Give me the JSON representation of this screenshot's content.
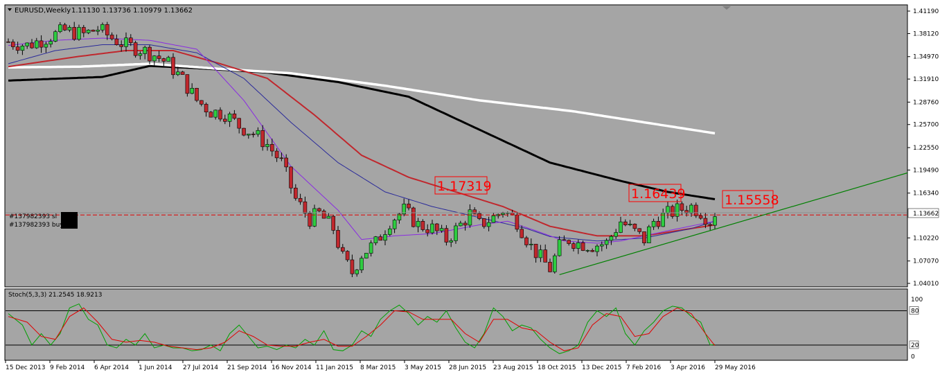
{
  "header": {
    "symbol": "EURUSD,Weekly",
    "ohlc": "1.11130 1.13736 1.10979 1.13662"
  },
  "colors": {
    "background": "#a5a5a5",
    "bull": "#2ecc40",
    "bear": "#c0272d",
    "ma_purple": "#8a2be2",
    "ma_blue": "#2a2a9a",
    "ma_red": "#c0272d",
    "ma_black": "#000000",
    "ma_white": "#ffffff",
    "trendline": "#008000",
    "annotation": "#ff0000",
    "stoch_main": "#00a000",
    "stoch_signal": "#e00000"
  },
  "price_axis": {
    "ticks": [
      "1.41190",
      "1.38120",
      "1.34970",
      "1.31910",
      "1.28760",
      "1.25700",
      "1.22550",
      "1.19490",
      "1.16340",
      "1.13662",
      "1.10220",
      "1.07070",
      "1.04010"
    ],
    "current_price": "1.13662"
  },
  "stoch_axis": {
    "ticks": [
      "100",
      "80",
      "20",
      "0"
    ]
  },
  "time_axis": {
    "labels": [
      "15 Dec 2013",
      "9 Feb 2014",
      "6 Apr 2014",
      "1 Jun 2014",
      "27 Jul 2014",
      "21 Sep 2014",
      "16 Nov 2014",
      "11 Jan 2015",
      "8 Mar 2015",
      "3 May 2015",
      "28 Jun 2015",
      "23 Aug 2015",
      "18 Oct 2015",
      "13 Dec 2015",
      "7 Feb 2016",
      "3 Apr 2016",
      "29 May 2016"
    ]
  },
  "orders": {
    "sl_label": "#137982393 sl",
    "buy_label": "#137982393 buy"
  },
  "annotations": [
    "1.17319",
    "1.16439",
    "1.15558"
  ],
  "stoch": {
    "label": "Stoch(5,3,3) 21.2545 18.9213",
    "upper_level": 80,
    "lower_level": 20
  },
  "chart_data": {
    "type": "candlestick",
    "title": "EURUSD,Weekly",
    "ylim": [
      1.0401,
      1.4119
    ],
    "x_labels": [
      "15 Dec 2013",
      "9 Feb 2014",
      "6 Apr 2014",
      "1 Jun 2014",
      "27 Jul 2014",
      "21 Sep 2014",
      "16 Nov 2014",
      "11 Jan 2015",
      "8 Mar 2015",
      "3 May 2015",
      "28 Jun 2015",
      "23 Aug 2015",
      "18 Oct 2015",
      "13 Dec 2015",
      "7 Feb 2016",
      "3 Apr 2016",
      "29 May 2016"
    ],
    "anchors": [
      [
        0,
        1.37
      ],
      [
        4,
        1.365
      ],
      [
        8,
        1.375
      ],
      [
        12,
        1.385
      ],
      [
        16,
        1.38
      ],
      [
        19,
        1.388
      ],
      [
        22,
        1.375
      ],
      [
        25,
        1.365
      ],
      [
        28,
        1.36
      ],
      [
        31,
        1.352
      ],
      [
        34,
        1.34
      ],
      [
        37,
        1.318
      ],
      [
        40,
        1.29
      ],
      [
        43,
        1.275
      ],
      [
        46,
        1.272
      ],
      [
        49,
        1.255
      ],
      [
        52,
        1.245
      ],
      [
        55,
        1.23
      ],
      [
        58,
        1.205
      ],
      [
        61,
        1.155
      ],
      [
        64,
        1.128
      ],
      [
        66,
        1.135
      ],
      [
        69,
        1.115
      ],
      [
        71,
        1.075
      ],
      [
        73,
        1.055
      ],
      [
        75,
        1.08
      ],
      [
        78,
        1.095
      ],
      [
        81,
        1.125
      ],
      [
        84,
        1.14
      ],
      [
        87,
        1.12
      ],
      [
        90,
        1.115
      ],
      [
        93,
        1.1
      ],
      [
        96,
        1.12
      ],
      [
        98,
        1.135
      ],
      [
        100,
        1.12
      ],
      [
        103,
        1.13
      ],
      [
        105,
        1.14
      ],
      [
        108,
        1.125
      ],
      [
        111,
        1.09
      ],
      [
        113,
        1.075
      ],
      [
        115,
        1.06
      ],
      [
        117,
        1.09
      ],
      [
        119,
        1.1
      ],
      [
        121,
        1.095
      ],
      [
        124,
        1.092
      ],
      [
        127,
        1.095
      ],
      [
        130,
        1.125
      ],
      [
        133,
        1.11
      ],
      [
        135,
        1.1
      ],
      [
        137,
        1.125
      ],
      [
        140,
        1.135
      ],
      [
        142,
        1.14
      ],
      [
        145,
        1.145
      ],
      [
        147,
        1.138
      ],
      [
        149,
        1.125
      ],
      [
        150,
        1.137
      ]
    ],
    "moving_averages": [
      {
        "color": "#000000",
        "width": 3,
        "points": [
          [
            0,
            1.317
          ],
          [
            20,
            1.322
          ],
          [
            30,
            1.337
          ],
          [
            40,
            1.334
          ],
          [
            55,
            1.328
          ],
          [
            70,
            1.315
          ],
          [
            85,
            1.295
          ],
          [
            100,
            1.25
          ],
          [
            115,
            1.205
          ],
          [
            130,
            1.18
          ],
          [
            140,
            1.165
          ],
          [
            150,
            1.155
          ]
        ]
      },
      {
        "color": "#ffffff",
        "width": 3.5,
        "points": [
          [
            0,
            1.335
          ],
          [
            15,
            1.336
          ],
          [
            30,
            1.34
          ],
          [
            45,
            1.333
          ],
          [
            60,
            1.327
          ],
          [
            80,
            1.31
          ],
          [
            100,
            1.29
          ],
          [
            120,
            1.275
          ],
          [
            140,
            1.255
          ],
          [
            150,
            1.245
          ]
        ]
      },
      {
        "color": "#c0272d",
        "width": 2,
        "points": [
          [
            0,
            1.336
          ],
          [
            15,
            1.35
          ],
          [
            25,
            1.358
          ],
          [
            35,
            1.358
          ],
          [
            45,
            1.34
          ],
          [
            55,
            1.32
          ],
          [
            65,
            1.27
          ],
          [
            75,
            1.215
          ],
          [
            85,
            1.185
          ],
          [
            95,
            1.165
          ],
          [
            105,
            1.145
          ],
          [
            115,
            1.118
          ],
          [
            125,
            1.105
          ],
          [
            135,
            1.105
          ],
          [
            145,
            1.115
          ],
          [
            150,
            1.12
          ]
        ]
      },
      {
        "color": "#2a2a9a",
        "width": 1,
        "points": [
          [
            0,
            1.34
          ],
          [
            10,
            1.358
          ],
          [
            20,
            1.366
          ],
          [
            30,
            1.366
          ],
          [
            40,
            1.355
          ],
          [
            50,
            1.32
          ],
          [
            60,
            1.26
          ],
          [
            70,
            1.205
          ],
          [
            80,
            1.165
          ],
          [
            90,
            1.145
          ],
          [
            100,
            1.13
          ],
          [
            110,
            1.115
          ],
          [
            115,
            1.104
          ],
          [
            125,
            1.098
          ],
          [
            135,
            1.102
          ],
          [
            145,
            1.115
          ],
          [
            150,
            1.125
          ]
        ]
      },
      {
        "color": "#8a2be2",
        "width": 1,
        "points": [
          [
            0,
            1.365
          ],
          [
            10,
            1.372
          ],
          [
            20,
            1.375
          ],
          [
            30,
            1.372
          ],
          [
            40,
            1.36
          ],
          [
            50,
            1.29
          ],
          [
            60,
            1.2
          ],
          [
            70,
            1.14
          ],
          [
            75,
            1.1
          ],
          [
            82,
            1.105
          ],
          [
            90,
            1.108
          ],
          [
            100,
            1.12
          ],
          [
            106,
            1.125
          ],
          [
            112,
            1.112
          ],
          [
            118,
            1.098
          ],
          [
            125,
            1.095
          ],
          [
            130,
            1.098
          ],
          [
            140,
            1.112
          ],
          [
            150,
            1.125
          ]
        ]
      }
    ],
    "trendline": [
      [
        117,
        1.052
      ],
      [
        150,
        1.117
      ],
      [
        190,
        1.191
      ]
    ],
    "sl_level": 1.1335,
    "stoch_k": [
      [
        0,
        75
      ],
      [
        3,
        55
      ],
      [
        5,
        20
      ],
      [
        7,
        40
      ],
      [
        9,
        20
      ],
      [
        11,
        40
      ],
      [
        13,
        85
      ],
      [
        15,
        92
      ],
      [
        17,
        65
      ],
      [
        19,
        55
      ],
      [
        21,
        20
      ],
      [
        23,
        15
      ],
      [
        25,
        30
      ],
      [
        27,
        20
      ],
      [
        29,
        40
      ],
      [
        31,
        15
      ],
      [
        33,
        20
      ],
      [
        35,
        15
      ],
      [
        37,
        15
      ],
      [
        39,
        10
      ],
      [
        41,
        12
      ],
      [
        43,
        20
      ],
      [
        45,
        10
      ],
      [
        47,
        40
      ],
      [
        49,
        55
      ],
      [
        51,
        35
      ],
      [
        53,
        15
      ],
      [
        55,
        18
      ],
      [
        57,
        12
      ],
      [
        59,
        20
      ],
      [
        61,
        15
      ],
      [
        63,
        30
      ],
      [
        65,
        20
      ],
      [
        67,
        45
      ],
      [
        69,
        12
      ],
      [
        71,
        10
      ],
      [
        73,
        20
      ],
      [
        75,
        45
      ],
      [
        77,
        35
      ],
      [
        79,
        65
      ],
      [
        81,
        80
      ],
      [
        83,
        90
      ],
      [
        85,
        75
      ],
      [
        87,
        55
      ],
      [
        89,
        70
      ],
      [
        91,
        60
      ],
      [
        93,
        80
      ],
      [
        95,
        50
      ],
      [
        97,
        25
      ],
      [
        99,
        15
      ],
      [
        101,
        40
      ],
      [
        103,
        85
      ],
      [
        105,
        70
      ],
      [
        107,
        45
      ],
      [
        109,
        55
      ],
      [
        111,
        50
      ],
      [
        113,
        30
      ],
      [
        115,
        15
      ],
      [
        117,
        5
      ],
      [
        119,
        10
      ],
      [
        121,
        20
      ],
      [
        123,
        60
      ],
      [
        125,
        80
      ],
      [
        127,
        70
      ],
      [
        129,
        85
      ],
      [
        131,
        40
      ],
      [
        133,
        20
      ],
      [
        135,
        45
      ],
      [
        137,
        60
      ],
      [
        139,
        80
      ],
      [
        141,
        88
      ],
      [
        143,
        85
      ],
      [
        145,
        70
      ],
      [
        147,
        60
      ],
      [
        149,
        20
      ],
      [
        150,
        21
      ]
    ],
    "stoch_d": [
      [
        0,
        70
      ],
      [
        4,
        60
      ],
      [
        7,
        35
      ],
      [
        10,
        30
      ],
      [
        13,
        70
      ],
      [
        16,
        85
      ],
      [
        19,
        60
      ],
      [
        22,
        30
      ],
      [
        25,
        25
      ],
      [
        28,
        28
      ],
      [
        31,
        25
      ],
      [
        34,
        18
      ],
      [
        37,
        15
      ],
      [
        40,
        12
      ],
      [
        43,
        15
      ],
      [
        46,
        25
      ],
      [
        49,
        45
      ],
      [
        52,
        35
      ],
      [
        55,
        20
      ],
      [
        58,
        18
      ],
      [
        61,
        18
      ],
      [
        64,
        25
      ],
      [
        67,
        30
      ],
      [
        70,
        18
      ],
      [
        73,
        18
      ],
      [
        76,
        35
      ],
      [
        79,
        55
      ],
      [
        82,
        80
      ],
      [
        85,
        78
      ],
      [
        88,
        65
      ],
      [
        91,
        65
      ],
      [
        94,
        65
      ],
      [
        97,
        40
      ],
      [
        100,
        25
      ],
      [
        103,
        65
      ],
      [
        106,
        65
      ],
      [
        109,
        50
      ],
      [
        112,
        45
      ],
      [
        115,
        25
      ],
      [
        118,
        10
      ],
      [
        121,
        15
      ],
      [
        124,
        55
      ],
      [
        127,
        75
      ],
      [
        130,
        70
      ],
      [
        133,
        35
      ],
      [
        136,
        40
      ],
      [
        139,
        70
      ],
      [
        142,
        85
      ],
      [
        145,
        75
      ],
      [
        148,
        40
      ],
      [
        150,
        19
      ]
    ]
  }
}
